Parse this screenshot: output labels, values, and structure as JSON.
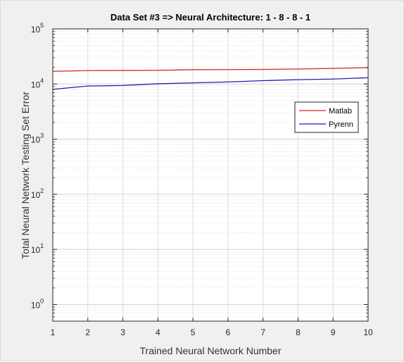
{
  "chart_data": {
    "type": "line",
    "title": "Data Set #3 => Neural Architecture: 1 - 8 - 8 - 1",
    "xlabel": "Trained Neural Network Number",
    "ylabel": "Total Neural Network Testing Set Error",
    "x": [
      1,
      2,
      3,
      4,
      5,
      6,
      7,
      8,
      9,
      10
    ],
    "xlim": [
      1,
      10
    ],
    "ylim": [
      0.5,
      100000
    ],
    "yscale": "log",
    "grid": true,
    "minor_grid": true,
    "legend_position": "upper-right",
    "x_tick_labels": [
      "1",
      "2",
      "3",
      "4",
      "5",
      "6",
      "7",
      "8",
      "9",
      "10"
    ],
    "y_ticks": [
      {
        "value": 1,
        "base": "10",
        "exp": "0"
      },
      {
        "value": 10,
        "base": "10",
        "exp": "1"
      },
      {
        "value": 100,
        "base": "10",
        "exp": "2"
      },
      {
        "value": 1000,
        "base": "10",
        "exp": "3"
      },
      {
        "value": 10000,
        "base": "10",
        "exp": "4"
      },
      {
        "value": 100000,
        "base": "10",
        "exp": "5"
      }
    ],
    "series": [
      {
        "name": "Matlab",
        "color": "#d62728",
        "values": [
          17000,
          17500,
          17600,
          17700,
          18200,
          18300,
          18400,
          18700,
          19200,
          19800
        ]
      },
      {
        "name": "Pyrenn",
        "color": "#1f1fb4",
        "values": [
          8000,
          9200,
          9400,
          10100,
          10500,
          10900,
          11500,
          12000,
          12300,
          13000
        ]
      }
    ]
  }
}
